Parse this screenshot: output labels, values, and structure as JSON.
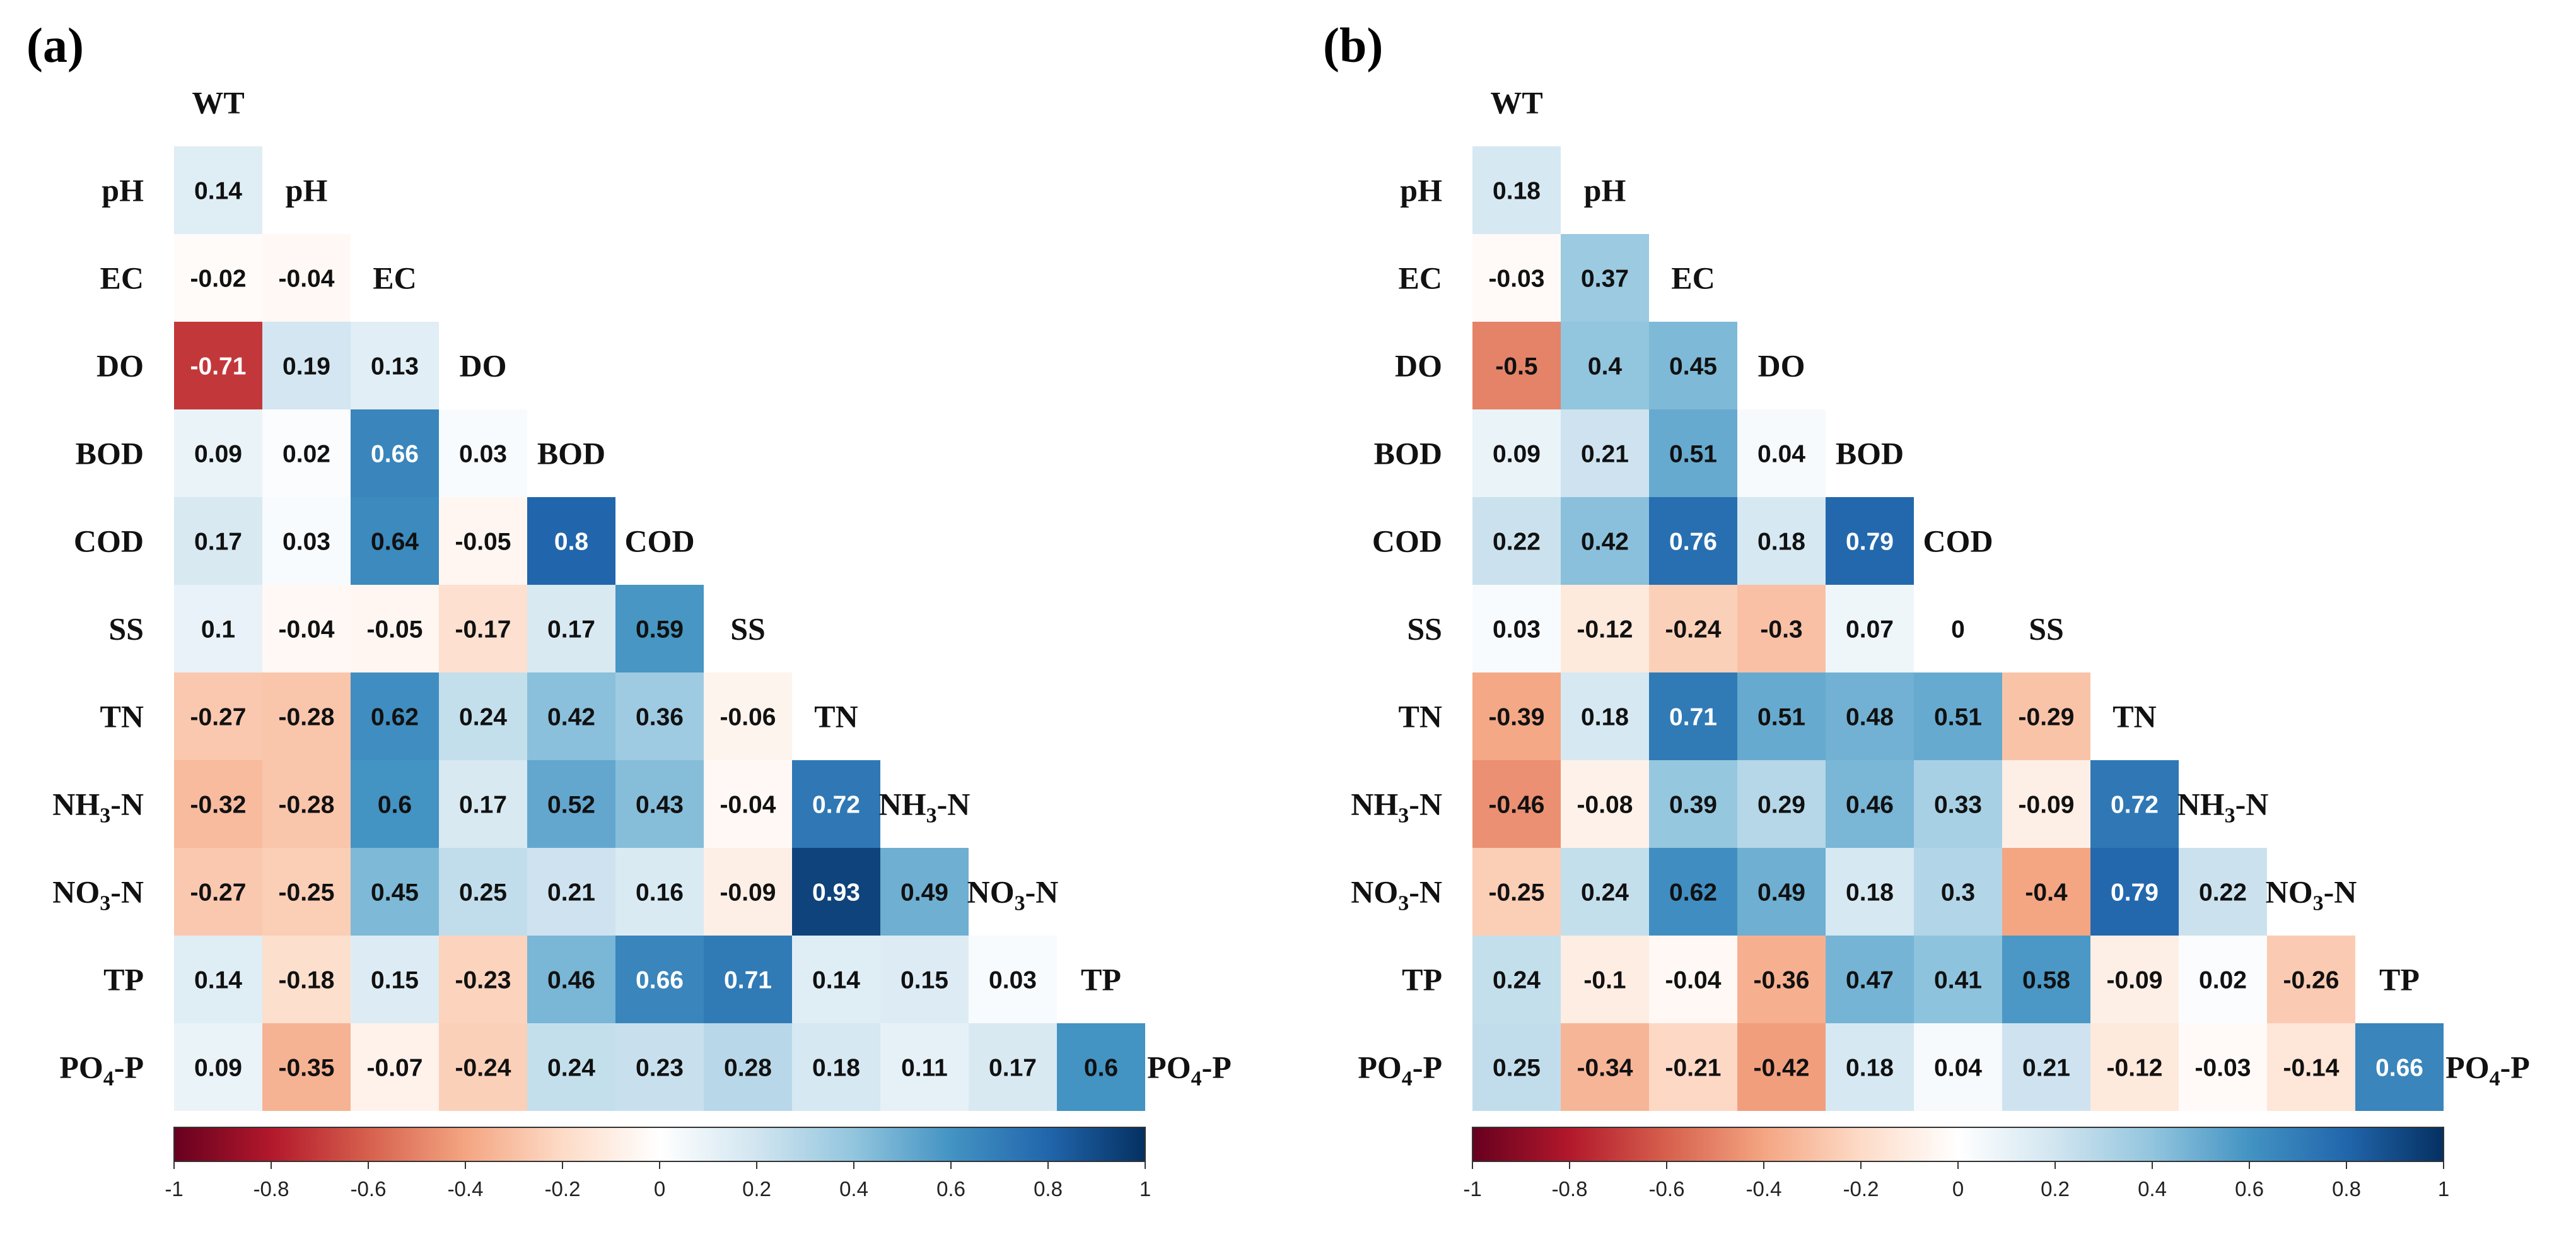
{
  "chart_data": {
    "type": "heatmap",
    "variables": [
      "WT",
      "pH",
      "EC",
      "DO",
      "BOD",
      "COD",
      "SS",
      "TN",
      "NH3-N",
      "NO3-N",
      "TP",
      "PO4-P"
    ],
    "variable_labels": [
      {
        "main": "WT"
      },
      {
        "main": "pH"
      },
      {
        "main": "EC"
      },
      {
        "main": "DO"
      },
      {
        "main": "BOD"
      },
      {
        "main": "COD"
      },
      {
        "main": "SS"
      },
      {
        "main": "TN"
      },
      {
        "main": "NH",
        "sub": "3",
        "tail": "-N"
      },
      {
        "main": "NO",
        "sub": "3",
        "tail": "-N"
      },
      {
        "main": "TP"
      },
      {
        "main": "PO",
        "sub": "4",
        "tail": "-P"
      }
    ],
    "colorbar": {
      "range": [
        -1,
        1
      ],
      "ticks": [
        "-1",
        "-0.8",
        "-0.6",
        "-0.4",
        "-0.2",
        "0",
        "0.2",
        "0.4",
        "0.6",
        "0.8",
        "1"
      ],
      "stops": [
        "#67001f",
        "#b2182b",
        "#d6604d",
        "#f4a582",
        "#fddbc7",
        "#ffffff",
        "#d1e5f0",
        "#92c5de",
        "#4393c3",
        "#2166ac",
        "#053061"
      ]
    },
    "panels": [
      {
        "label": "(a)",
        "matrix": [
          [],
          [
            0.14
          ],
          [
            -0.02,
            -0.04
          ],
          [
            -0.71,
            0.19,
            0.13
          ],
          [
            0.09,
            0.02,
            0.66,
            0.03
          ],
          [
            0.17,
            0.03,
            0.64,
            -0.05,
            0.8
          ],
          [
            0.1,
            -0.04,
            -0.05,
            -0.17,
            0.17,
            0.59
          ],
          [
            -0.27,
            -0.28,
            0.62,
            0.24,
            0.42,
            0.36,
            -0.06
          ],
          [
            -0.32,
            -0.28,
            0.6,
            0.17,
            0.52,
            0.43,
            -0.04,
            0.72
          ],
          [
            -0.27,
            -0.25,
            0.45,
            0.25,
            0.21,
            0.16,
            -0.09,
            0.93,
            0.49
          ],
          [
            0.14,
            -0.18,
            0.15,
            -0.23,
            0.46,
            0.66,
            0.71,
            0.14,
            0.15,
            0.03
          ],
          [
            0.09,
            -0.35,
            -0.07,
            -0.24,
            0.24,
            0.23,
            0.28,
            0.18,
            0.11,
            0.17,
            0.6
          ]
        ]
      },
      {
        "label": "(b)",
        "matrix": [
          [],
          [
            0.18
          ],
          [
            -0.03,
            0.37
          ],
          [
            -0.5,
            0.4,
            0.45
          ],
          [
            0.09,
            0.21,
            0.51,
            0.04
          ],
          [
            0.22,
            0.42,
            0.76,
            0.18,
            0.79
          ],
          [
            0.03,
            -0.12,
            -0.24,
            -0.3,
            0.07,
            0
          ],
          [
            -0.39,
            0.18,
            0.71,
            0.51,
            0.48,
            0.51,
            -0.29
          ],
          [
            -0.46,
            -0.08,
            0.39,
            0.29,
            0.46,
            0.33,
            -0.09,
            0.72
          ],
          [
            -0.25,
            0.24,
            0.62,
            0.49,
            0.18,
            0.3,
            -0.4,
            0.79,
            0.22
          ],
          [
            0.24,
            -0.1,
            -0.04,
            -0.36,
            0.47,
            0.41,
            0.58,
            -0.09,
            0.02,
            -0.26
          ],
          [
            0.25,
            -0.34,
            -0.21,
            -0.42,
            0.18,
            0.04,
            0.21,
            -0.12,
            -0.03,
            -0.14,
            0.66
          ]
        ]
      }
    ]
  }
}
